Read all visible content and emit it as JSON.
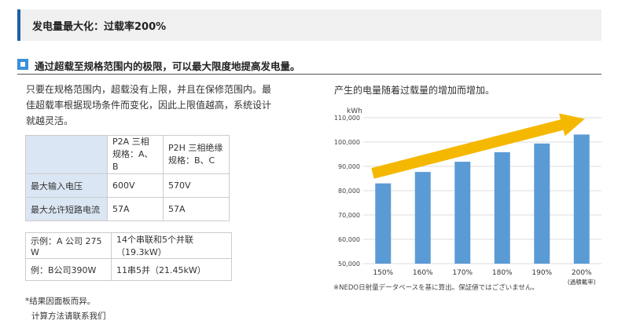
{
  "header": {
    "title": "发电量最大化：过载率200%"
  },
  "subheading": {
    "text": "通过超载至规格范围内的极限，可以最大限度地提高发电量。"
  },
  "intro": {
    "line1": "只要在规格范围内，超载没有上限，并且在保修范围内。最",
    "line2": "佳超载率根据现场条件而变化，因此上限值越高，系统设计",
    "line3": "就越灵活。"
  },
  "spec_table": {
    "col1_line1": "P2A 三相",
    "col1_line2": "规格：A、B",
    "col2_line1": "P2H 三相绝缘",
    "col2_line2": "规格：B、C",
    "rows": [
      {
        "label": "最大输入电压",
        "p2a": "600V",
        "p2h": "570V"
      },
      {
        "label": "最大允许短路电流",
        "p2a": "57A",
        "p2h": "57A"
      }
    ]
  },
  "example_table": {
    "rows": [
      {
        "label": "示例：A 公司 275 W",
        "value": "14个串联和5个并联（19.3kW）"
      },
      {
        "label": "例：B公司390W",
        "value": "11串5并（21.45kW）"
      }
    ]
  },
  "notes": {
    "line1": "*结果因面板而异。",
    "line2": "计算方法请联系我们"
  },
  "chart_data": {
    "type": "bar",
    "title": "产生的电量随着过载量的增加而增加。",
    "ylabel": "kWh",
    "categories": [
      "150%",
      "160%",
      "170%",
      "180%",
      "190%",
      "200%"
    ],
    "x_axis_note": "(過積載率)",
    "values": [
      83000,
      87700,
      91900,
      95800,
      99400,
      103100
    ],
    "ylim": [
      50000,
      110000
    ],
    "yticks": [
      "50,000",
      "60,000",
      "70,000",
      "80,000",
      "90,000",
      "100,000",
      "110,000"
    ],
    "grid": true,
    "bar_color": "#5b9bd5",
    "arrow_color": "#f5b800",
    "footnote": "※NEDO日射量データベースを基に算出。保証値ではございません。"
  }
}
